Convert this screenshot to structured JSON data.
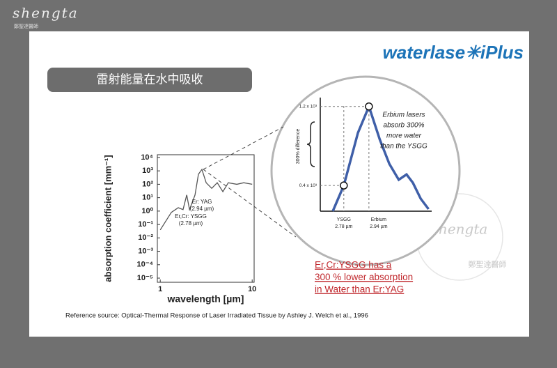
{
  "watermark": {
    "brand": "shengta",
    "subtitle": "鄭聖達醫師"
  },
  "logo": "waterlase✳iPlus",
  "banner": "雷射能量在水中吸收",
  "chart_data": [
    {
      "type": "line",
      "ylabel": "absorption coefficient [mm⁻¹]",
      "xlabel": "wavelength [µm]",
      "log_x": true,
      "log_y": true,
      "xlim": [
        0.93,
        10.5
      ],
      "xticks": [
        1,
        10
      ],
      "ylim": [
        4.9e-06,
        16000
      ],
      "yticks": [
        {
          "value": 10000,
          "label": "10⁴"
        },
        {
          "value": 1000,
          "label": "10³"
        },
        {
          "value": 100,
          "label": "10²"
        },
        {
          "value": 10,
          "label": "10¹"
        },
        {
          "value": 1,
          "label": "10⁰"
        },
        {
          "value": 0.1,
          "label": "10⁻¹"
        },
        {
          "value": 0.01,
          "label": "10⁻²"
        },
        {
          "value": 0.001,
          "label": "10⁻³"
        },
        {
          "value": 0.0001,
          "label": "10⁻⁴"
        },
        {
          "value": 1e-05,
          "label": "10⁻⁵"
        }
      ],
      "annotations": [
        "Er: YAG",
        "(2.94 µm)",
        "Er,Cr: YSGG",
        "(2.78 µm)"
      ],
      "series": [
        {
          "color": "#555555",
          "x": [
            1.0,
            1.32,
            1.57,
            1.77,
            1.94,
            2.08,
            2.39,
            2.6,
            2.84,
            3.16,
            3.63,
            4.17,
            4.8,
            5.5,
            6.8,
            8.1,
            10
          ],
          "values": [
            0.04,
            0.8,
            1.8,
            1.3,
            16,
            1.3,
            16,
            560,
            1300,
            130,
            50,
            130,
            28,
            130,
            100,
            130,
            100
          ]
        }
      ]
    },
    {
      "type": "line",
      "ylabel": "300% difference",
      "xlim": [
        2.63,
        3.34
      ],
      "ylim": [
        140,
        1290
      ],
      "xticks": [
        {
          "value": 2.78,
          "label": "YSGG"
        },
        {
          "value": 2.94,
          "label": "Erbium"
        }
      ],
      "xtick_units": [
        "2.78 µm",
        "2.94 µm"
      ],
      "yticks": [
        {
          "value": 400,
          "label": "0.4 x 10³"
        },
        {
          "value": 1200,
          "label": "1.2 x 10³"
        }
      ],
      "annotations": [
        "Erbium lasers",
        "absorb 300%",
        "more water",
        "than the YSGG"
      ],
      "series": [
        {
          "color": "#3f5fa8",
          "x": [
            2.71,
            2.78,
            2.87,
            2.94,
            3.01,
            3.07,
            3.13,
            3.18,
            3.22,
            3.27,
            3.32
          ],
          "values": [
            140,
            400,
            933,
            1200,
            863,
            619,
            458,
            512,
            428,
            267,
            161
          ]
        }
      ]
    }
  ],
  "annotation": [
    "Er,Cr:YSGG has a",
    "300 % lower absorption",
    "in Water than Er:YAG"
  ],
  "reference": "Reference source: Optical-Thermal Response of Laser Irradiated Tissue by Ashley J. Welch et al., 1996"
}
